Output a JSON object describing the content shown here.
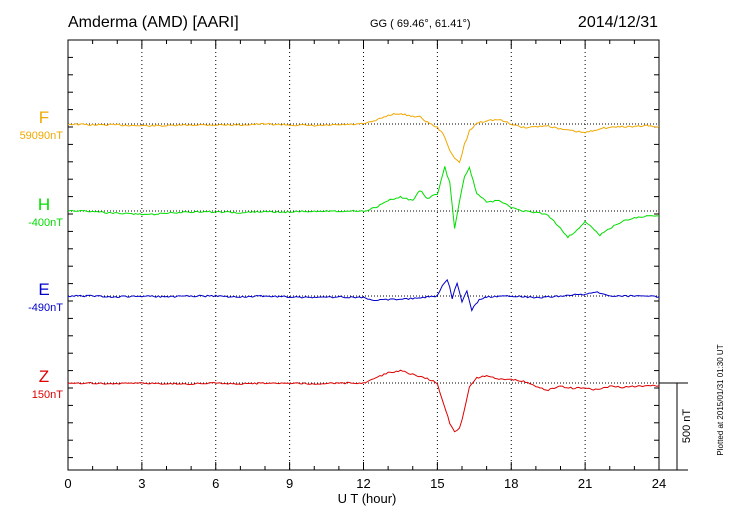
{
  "header": {
    "station": "Amderma (AMD)  [AARI]",
    "coords": "GG ( 69.46°,  61.41°)",
    "date": "2014/12/31"
  },
  "footer": {
    "plotted": "Plotted at 2015/01/31 01:30 UT",
    "scale_label": "500 nT"
  },
  "colors": {
    "F": "#f0a800",
    "H": "#00dd00",
    "E": "#0000cc",
    "Z": "#dd0000"
  },
  "chart_data": {
    "type": "line",
    "xlabel": "U T (hour)",
    "xlim": [
      0,
      24
    ],
    "xticks": [
      0,
      3,
      6,
      9,
      12,
      15,
      18,
      21,
      24
    ],
    "scale_nT": 500,
    "series": [
      {
        "key": "F",
        "name": "F",
        "baseline_label": "59090nT",
        "x": [
          0,
          1,
          2,
          3,
          4,
          5,
          6,
          7,
          8,
          9,
          10,
          11,
          12,
          12.5,
          13,
          13.3,
          13.6,
          14,
          14.3,
          14.6,
          15,
          15.3,
          15.5,
          15.7,
          15.9,
          16.1,
          16.3,
          16.6,
          17,
          17.5,
          18,
          18.5,
          19,
          19.5,
          20,
          20.5,
          21,
          21.3,
          21.6,
          22,
          22.5,
          23,
          23.5,
          24
        ],
        "y": [
          0,
          -5,
          -5,
          -10,
          -10,
          -5,
          -5,
          -5,
          0,
          -5,
          -10,
          -5,
          0,
          20,
          50,
          60,
          55,
          45,
          40,
          10,
          -20,
          -70,
          -150,
          -200,
          -220,
          -120,
          -40,
          5,
          20,
          25,
          0,
          -20,
          -15,
          -10,
          -30,
          -40,
          -50,
          -40,
          -25,
          -20,
          -15,
          -15,
          -10,
          -15
        ]
      },
      {
        "key": "H",
        "name": "H",
        "baseline_label": "-400nT",
        "x": [
          0,
          1,
          1.5,
          2,
          3,
          3.5,
          4,
          5,
          6,
          7,
          8,
          9,
          10,
          11,
          12,
          12.5,
          13,
          13.5,
          14,
          14.3,
          14.6,
          15,
          15.3,
          15.5,
          15.7,
          15.9,
          16.1,
          16.3,
          16.6,
          17,
          17.5,
          18,
          18.5,
          19,
          19.5,
          20,
          20.3,
          20.6,
          21,
          21.3,
          21.6,
          22,
          22.5,
          23,
          23.5,
          24
        ],
        "y": [
          0,
          0,
          -10,
          -10,
          -20,
          -20,
          -10,
          -5,
          -5,
          -10,
          -5,
          -5,
          0,
          0,
          0,
          20,
          60,
          80,
          60,
          120,
          70,
          100,
          250,
          170,
          -100,
          60,
          200,
          250,
          100,
          50,
          60,
          20,
          0,
          -10,
          -20,
          -100,
          -150,
          -120,
          -60,
          -100,
          -140,
          -100,
          -60,
          -40,
          -30,
          -30
        ]
      },
      {
        "key": "E",
        "name": "E",
        "baseline_label": "-490nT",
        "x": [
          0,
          1,
          2,
          3,
          4,
          5,
          6,
          7,
          8,
          9,
          10,
          11,
          12,
          12.5,
          13,
          14,
          15,
          15.2,
          15.4,
          15.6,
          15.8,
          16,
          16.2,
          16.4,
          16.7,
          17,
          18,
          19,
          20,
          21,
          21.5,
          22,
          23,
          24
        ],
        "y": [
          0,
          0,
          -5,
          0,
          -5,
          0,
          0,
          -5,
          0,
          -5,
          -10,
          -5,
          -10,
          -25,
          -20,
          -15,
          0,
          60,
          100,
          -10,
          80,
          -30,
          30,
          -80,
          -20,
          -5,
          0,
          -10,
          0,
          10,
          20,
          0,
          0,
          -5
        ]
      },
      {
        "key": "Z",
        "name": "Z",
        "baseline_label": "150nT",
        "x": [
          0,
          1,
          2,
          3,
          4,
          5,
          6,
          7,
          8,
          9,
          10,
          11,
          12,
          12.5,
          13,
          13.5,
          14,
          14.5,
          15,
          15.2,
          15.5,
          15.7,
          15.9,
          16.1,
          16.3,
          16.6,
          17,
          17.5,
          18,
          18.5,
          19,
          19.5,
          20,
          20.5,
          21,
          21.5,
          22,
          22.5,
          23,
          24
        ],
        "y": [
          0,
          0,
          -5,
          0,
          -5,
          -5,
          0,
          -5,
          0,
          0,
          -5,
          0,
          0,
          30,
          60,
          70,
          50,
          30,
          0,
          -100,
          -230,
          -280,
          -260,
          -150,
          -20,
          30,
          40,
          20,
          20,
          10,
          -20,
          -40,
          -20,
          -30,
          -30,
          -40,
          -20,
          -25,
          -20,
          -15
        ]
      }
    ]
  }
}
